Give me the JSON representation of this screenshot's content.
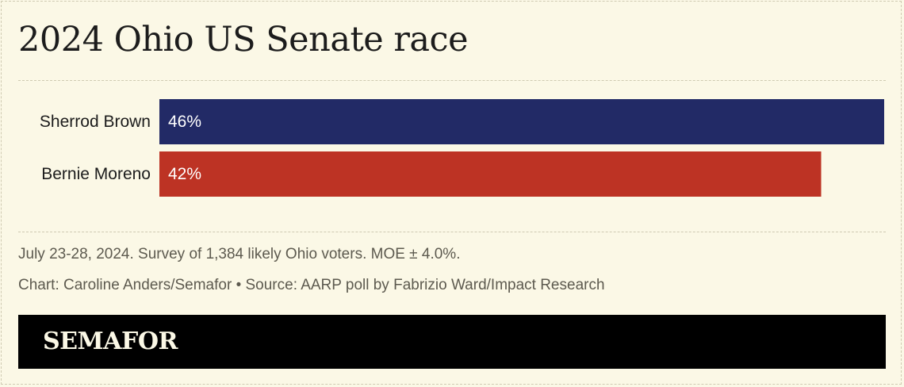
{
  "title": "2024 Ohio US Senate race",
  "chart_data": {
    "type": "bar",
    "orientation": "horizontal",
    "categories": [
      "Sherrod Brown",
      "Bernie Moreno"
    ],
    "values": [
      46,
      42
    ],
    "labels": [
      "46%",
      "42%"
    ],
    "colors": [
      "#222a66",
      "#bd3324"
    ],
    "label_color": "#ffffff",
    "xlim": [
      0,
      46
    ],
    "grid": false
  },
  "notes": {
    "survey": "July 23-28, 2024. Survey of 1,384 likely Ohio voters. MOE ± 4.0%.",
    "credit": "Chart: Caroline Anders/Semafor • Source: AARP poll by Fabrizio Ward/Impact Research"
  },
  "brand": {
    "logo": "SEMAFOR"
  }
}
